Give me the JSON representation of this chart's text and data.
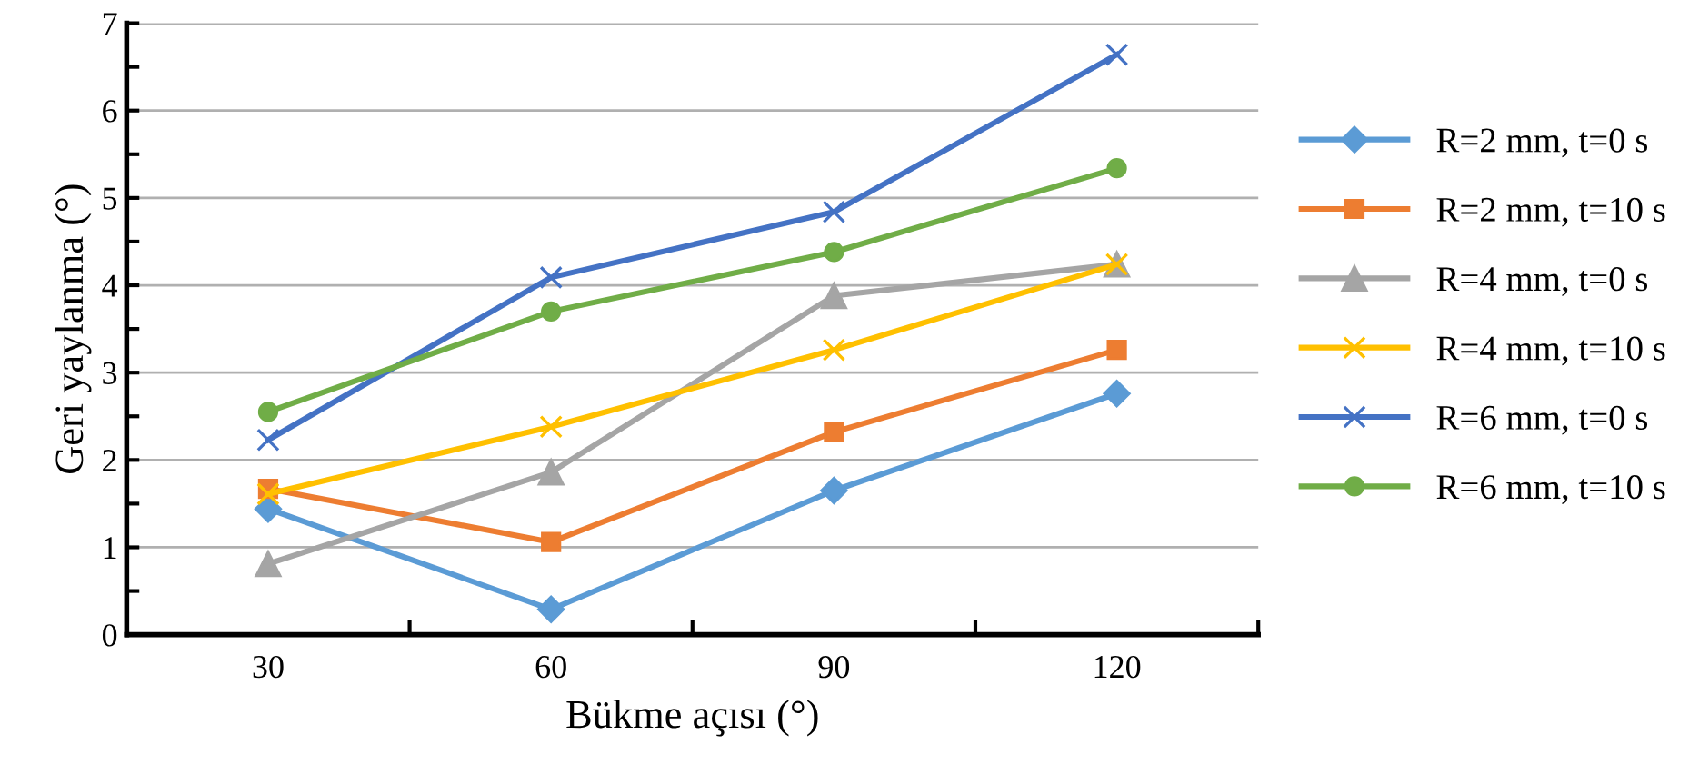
{
  "chart_data": {
    "type": "line",
    "xlabel": "Bükme açısı (°)",
    "ylabel": "Geri yaylanma (°)",
    "categories": [
      "30",
      "60",
      "90",
      "120"
    ],
    "series": [
      {
        "name": "R=2 mm, t=0 s",
        "color": "#5b9bd5",
        "marker": "diamond",
        "values": [
          1.44,
          0.29,
          1.65,
          2.76
        ]
      },
      {
        "name": "R=2 mm, t=10 s",
        "color": "#ed7d31",
        "marker": "square",
        "values": [
          1.67,
          1.06,
          2.32,
          3.26
        ]
      },
      {
        "name": "R=4 mm, t=0 s",
        "color": "#a5a5a5",
        "marker": "triangle",
        "values": [
          0.81,
          1.86,
          3.88,
          4.24
        ]
      },
      {
        "name": "R=4 mm, t=10 s",
        "color": "#ffc000",
        "marker": "cross",
        "values": [
          1.61,
          2.38,
          3.26,
          4.24
        ]
      },
      {
        "name": "R=6 mm, t=0 s",
        "color": "#4472c4",
        "marker": "cross",
        "values": [
          2.23,
          4.09,
          4.84,
          6.64
        ]
      },
      {
        "name": "R=6 mm, t=10 s",
        "color": "#70ad47",
        "marker": "circle",
        "values": [
          2.55,
          3.7,
          4.38,
          5.34
        ]
      }
    ],
    "ylim": [
      0,
      7
    ],
    "yticks": [
      0,
      1,
      2,
      3,
      4,
      5,
      6,
      7
    ],
    "grid": "y",
    "legend": "right",
    "line_style": "solid"
  }
}
